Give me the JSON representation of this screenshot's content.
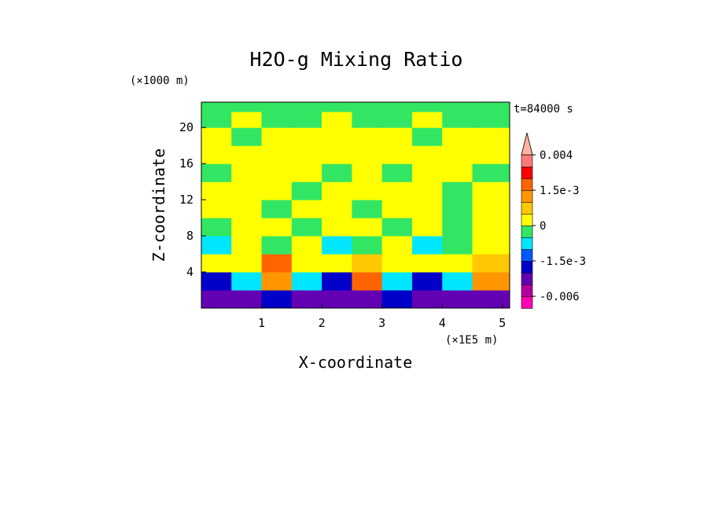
{
  "chart_data": {
    "type": "heatmap",
    "title": "H2O-g Mixing Ratio",
    "xlabel": "X-coordinate",
    "ylabel": "Z-coordinate",
    "x_unit": "(×1E5 m)",
    "y_unit": "(×1000 m)",
    "time_label": "t=84000 s",
    "x_ticks": [
      1,
      2,
      3,
      4,
      5
    ],
    "y_ticks": [
      4,
      8,
      12,
      16,
      20
    ],
    "xlim": [
      0,
      5.12
    ],
    "ylim": [
      0,
      22.8
    ],
    "colorbar": {
      "labels": [
        {
          "text": "0.004",
          "value": 0.004
        },
        {
          "text": "1.5e-3",
          "value": 0.0015
        },
        {
          "text": "0",
          "value": 0
        },
        {
          "text": "-1.5e-3",
          "value": -0.0015
        },
        {
          "text": "-0.006",
          "value": -0.006
        }
      ],
      "levels": [
        {
          "from": -0.008,
          "to": -0.006,
          "color": "#ff00b4"
        },
        {
          "from": -0.006,
          "to": -0.004,
          "color": "#b400a0"
        },
        {
          "from": -0.004,
          "to": -0.002,
          "color": "#6400b4"
        },
        {
          "from": -0.002,
          "to": -0.0015,
          "color": "#0000c8"
        },
        {
          "from": -0.0015,
          "to": -0.001,
          "color": "#005aff"
        },
        {
          "from": -0.001,
          "to": -0.0005,
          "color": "#00e6ff"
        },
        {
          "from": -0.0005,
          "to": 0,
          "color": "#32e664"
        },
        {
          "from": 0,
          "to": 0.0005,
          "color": "#ffff00"
        },
        {
          "from": 0.0005,
          "to": 0.001,
          "color": "#ffc800"
        },
        {
          "from": 0.001,
          "to": 0.0015,
          "color": "#ff9600"
        },
        {
          "from": 0.0015,
          "to": 0.002,
          "color": "#ff6400"
        },
        {
          "from": 0.002,
          "to": 0.003,
          "color": "#ff0000"
        },
        {
          "from": 0.003,
          "to": 0.004,
          "color": "#ff7a7a"
        },
        {
          "from": 0.004,
          "to": 0.005,
          "color": "#ffb4a0"
        }
      ]
    },
    "field": {
      "x": [
        0.25,
        0.75,
        1.25,
        1.75,
        2.25,
        2.75,
        3.25,
        3.75,
        4.25,
        4.75
      ],
      "z": [
        1,
        3,
        5,
        7,
        9,
        11,
        13,
        15,
        17,
        19,
        21,
        22.5
      ],
      "values": [
        [
          -0.004,
          -0.003,
          -0.002,
          -0.004,
          -0.003,
          -0.004,
          -0.002,
          -0.003,
          -0.004,
          -0.003
        ],
        [
          -0.002,
          -0.001,
          0.0012,
          -0.001,
          -0.002,
          0.0018,
          -0.001,
          -0.002,
          -0.001,
          0.0012
        ],
        [
          0.0003,
          0.0004,
          0.0016,
          0.0004,
          0.0003,
          0.0005,
          0.0004,
          0.0003,
          0.0004,
          0.0005
        ],
        [
          -0.0008,
          0.0003,
          -0.0003,
          0.0004,
          -0.0008,
          -0.0003,
          0.0004,
          -0.0008,
          -0.0003,
          0.0003
        ],
        [
          -0.0003,
          0.0004,
          0.0003,
          -0.0003,
          0.0004,
          0.0003,
          -0.0003,
          0.0004,
          -0.0003,
          0.0003
        ],
        [
          0.0003,
          0.0004,
          -0.0003,
          0.0004,
          0.0003,
          -0.0003,
          0.0004,
          0.0003,
          -0.0003,
          0.0004
        ],
        [
          0.0004,
          0.0003,
          0.0004,
          -0.0003,
          0.0003,
          0.0004,
          0.0003,
          0.0004,
          -0.0003,
          0.0003
        ],
        [
          -0.0003,
          0.0004,
          0.0003,
          0.0004,
          -0.0003,
          0.0003,
          -0.0003,
          0.0004,
          0.0003,
          -0.0003
        ],
        [
          0.0003,
          0.0004,
          0.0004,
          0.0003,
          0.0004,
          0.0003,
          0.0004,
          0.0003,
          0.0004,
          0.0003
        ],
        [
          0.0003,
          -0.0003,
          0.0003,
          0.0004,
          0.0003,
          0.0004,
          0.0003,
          -0.0003,
          0.0003,
          0.0004
        ],
        [
          -0.0003,
          0.0003,
          -0.0003,
          -0.0003,
          0.0003,
          -0.0003,
          -0.0003,
          0.0003,
          -0.0003,
          -0.0003
        ],
        [
          -0.0003,
          -0.0003,
          -0.0003,
          -0.0003,
          -0.0003,
          -0.0003,
          -0.0003,
          -0.0003,
          -0.0003,
          -0.0003
        ]
      ]
    }
  }
}
